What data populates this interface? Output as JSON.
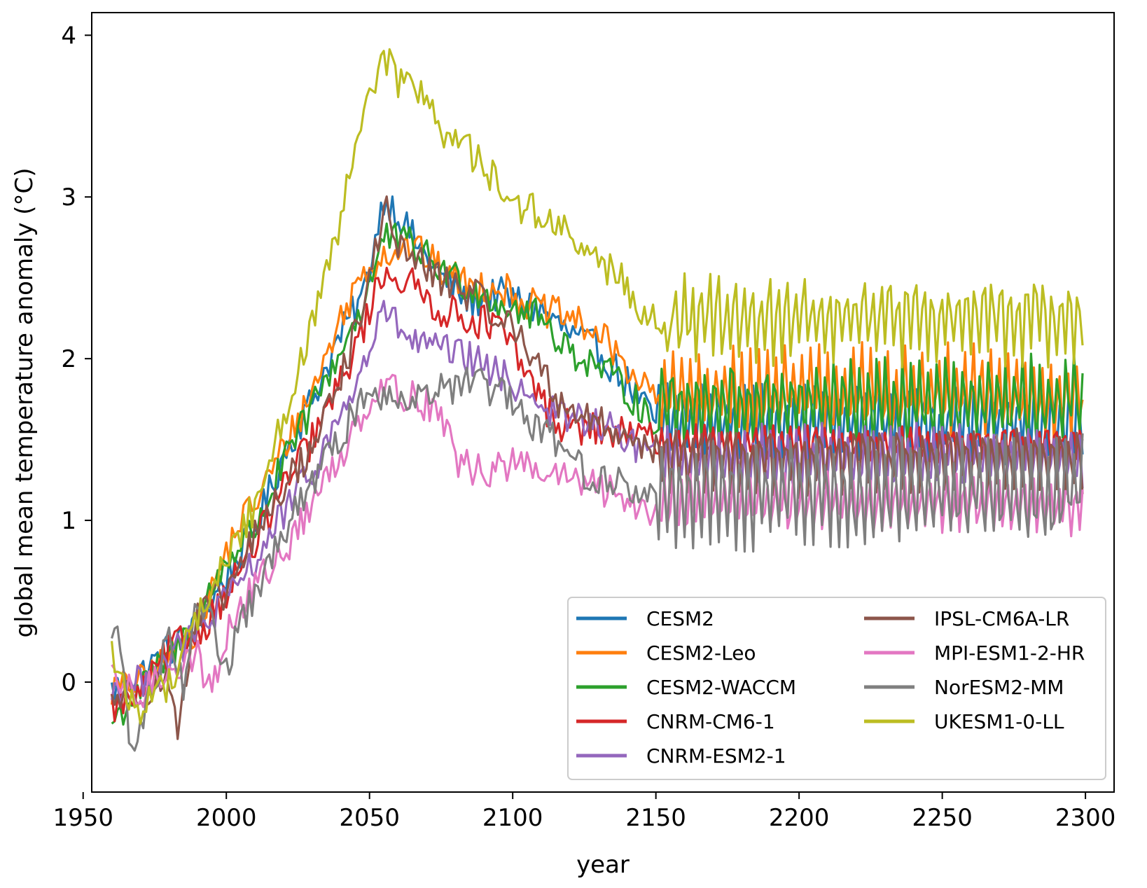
{
  "chart_data": {
    "type": "line",
    "title": "",
    "xlabel": "year",
    "ylabel": "global mean temperature anomaly (°C)",
    "xlim": [
      1953,
      2310
    ],
    "ylim": [
      -0.68,
      4.14
    ],
    "xticks": [
      1950,
      2000,
      2050,
      2100,
      2150,
      2200,
      2250,
      2300
    ],
    "yticks": [
      0,
      1,
      2,
      3,
      4
    ],
    "grid": false,
    "legend": {
      "placement": "lower-right",
      "columns": 2
    },
    "series": [
      {
        "name": "CESM2",
        "color": "#1f77b4",
        "anchors": [
          [
            1960,
            -0.05
          ],
          [
            1970,
            0.05
          ],
          [
            1980,
            0.2
          ],
          [
            1990,
            0.35
          ],
          [
            2000,
            0.65
          ],
          [
            2010,
            0.95
          ],
          [
            2020,
            1.4
          ],
          [
            2030,
            1.75
          ],
          [
            2040,
            2.15
          ],
          [
            2048,
            2.4
          ],
          [
            2055,
            3.0
          ],
          [
            2060,
            2.9
          ],
          [
            2065,
            2.75
          ],
          [
            2075,
            2.5
          ],
          [
            2085,
            2.35
          ],
          [
            2095,
            2.4
          ],
          [
            2110,
            2.3
          ],
          [
            2120,
            2.15
          ],
          [
            2130,
            2.05
          ],
          [
            2140,
            1.85
          ],
          [
            2150,
            1.6
          ]
        ],
        "osc": {
          "lo": 1.35,
          "hi": 1.9
        }
      },
      {
        "name": "CESM2-Leo",
        "color": "#ff7f0e",
        "anchors": [
          [
            1960,
            -0.05
          ],
          [
            1970,
            0.0
          ],
          [
            1980,
            0.15
          ],
          [
            1990,
            0.35
          ],
          [
            2000,
            0.8
          ],
          [
            2005,
            1.0
          ],
          [
            2010,
            1.1
          ],
          [
            2020,
            1.45
          ],
          [
            2030,
            1.8
          ],
          [
            2040,
            2.25
          ],
          [
            2048,
            2.55
          ],
          [
            2055,
            2.65
          ],
          [
            2065,
            2.7
          ],
          [
            2075,
            2.55
          ],
          [
            2085,
            2.45
          ],
          [
            2095,
            2.45
          ],
          [
            2110,
            2.3
          ],
          [
            2120,
            2.25
          ],
          [
            2130,
            2.15
          ],
          [
            2140,
            1.95
          ],
          [
            2150,
            1.75
          ]
        ],
        "osc": {
          "lo": 1.45,
          "hi": 2.1
        }
      },
      {
        "name": "CESM2-WACCM",
        "color": "#2ca02c",
        "anchors": [
          [
            1960,
            -0.25
          ],
          [
            1970,
            -0.05
          ],
          [
            1980,
            0.15
          ],
          [
            1990,
            0.4
          ],
          [
            2000,
            0.75
          ],
          [
            2010,
            0.95
          ],
          [
            2020,
            1.35
          ],
          [
            2030,
            1.7
          ],
          [
            2040,
            2.05
          ],
          [
            2048,
            2.35
          ],
          [
            2055,
            2.75
          ],
          [
            2065,
            2.7
          ],
          [
            2075,
            2.55
          ],
          [
            2085,
            2.45
          ],
          [
            2095,
            2.35
          ],
          [
            2110,
            2.25
          ],
          [
            2120,
            2.05
          ],
          [
            2130,
            1.95
          ],
          [
            2140,
            1.8
          ],
          [
            2150,
            1.6
          ]
        ],
        "osc": {
          "lo": 1.4,
          "hi": 2.05
        }
      },
      {
        "name": "CNRM-CM6-1",
        "color": "#d62728",
        "anchors": [
          [
            1960,
            -0.15
          ],
          [
            1970,
            -0.1
          ],
          [
            1980,
            0.2
          ],
          [
            1990,
            0.3
          ],
          [
            2000,
            0.55
          ],
          [
            2010,
            0.85
          ],
          [
            2020,
            1.2
          ],
          [
            2030,
            1.5
          ],
          [
            2040,
            1.85
          ],
          [
            2048,
            2.2
          ],
          [
            2055,
            2.55
          ],
          [
            2065,
            2.45
          ],
          [
            2075,
            2.3
          ],
          [
            2085,
            2.25
          ],
          [
            2095,
            2.2
          ],
          [
            2105,
            1.9
          ],
          [
            2115,
            1.6
          ],
          [
            2130,
            1.55
          ],
          [
            2150,
            1.5
          ]
        ],
        "osc": {
          "lo": 1.35,
          "hi": 1.6
        }
      },
      {
        "name": "CNRM-ESM2-1",
        "color": "#9467bd",
        "anchors": [
          [
            1960,
            -0.05
          ],
          [
            1970,
            0.0
          ],
          [
            1980,
            0.15
          ],
          [
            1990,
            0.3
          ],
          [
            2000,
            0.5
          ],
          [
            2010,
            0.75
          ],
          [
            2020,
            1.05
          ],
          [
            2030,
            1.3
          ],
          [
            2040,
            1.65
          ],
          [
            2048,
            1.95
          ],
          [
            2055,
            2.3
          ],
          [
            2065,
            2.1
          ],
          [
            2075,
            2.05
          ],
          [
            2085,
            2.0
          ],
          [
            2095,
            1.9
          ],
          [
            2105,
            1.8
          ],
          [
            2115,
            1.65
          ],
          [
            2130,
            1.6
          ],
          [
            2150,
            1.4
          ]
        ],
        "osc": {
          "lo": 1.15,
          "hi": 1.6
        }
      },
      {
        "name": "IPSL-CM6A-LR",
        "color": "#8c564b",
        "anchors": [
          [
            1960,
            -0.1
          ],
          [
            1970,
            -0.05
          ],
          [
            1980,
            0.0
          ],
          [
            1983,
            -0.25
          ],
          [
            1990,
            0.4
          ],
          [
            2000,
            0.55
          ],
          [
            2010,
            0.9
          ],
          [
            2020,
            1.2
          ],
          [
            2030,
            1.45
          ],
          [
            2040,
            1.9
          ],
          [
            2048,
            2.3
          ],
          [
            2055,
            2.95
          ],
          [
            2060,
            2.7
          ],
          [
            2070,
            2.55
          ],
          [
            2080,
            2.45
          ],
          [
            2090,
            2.35
          ],
          [
            2105,
            2.1
          ],
          [
            2115,
            1.75
          ],
          [
            2130,
            1.6
          ],
          [
            2150,
            1.45
          ]
        ],
        "osc": {
          "lo": 1.15,
          "hi": 1.6
        }
      },
      {
        "name": "MPI-ESM1-2-HR",
        "color": "#e377c2",
        "anchors": [
          [
            1960,
            0.0
          ],
          [
            1970,
            -0.1
          ],
          [
            1980,
            0.1
          ],
          [
            1990,
            0.15
          ],
          [
            1995,
            -0.05
          ],
          [
            2000,
            0.3
          ],
          [
            2010,
            0.6
          ],
          [
            2020,
            0.8
          ],
          [
            2030,
            1.1
          ],
          [
            2040,
            1.4
          ],
          [
            2048,
            1.7
          ],
          [
            2055,
            1.85
          ],
          [
            2065,
            1.75
          ],
          [
            2075,
            1.7
          ],
          [
            2080,
            1.35
          ],
          [
            2090,
            1.3
          ],
          [
            2100,
            1.35
          ],
          [
            2110,
            1.3
          ],
          [
            2120,
            1.25
          ],
          [
            2130,
            1.2
          ],
          [
            2150,
            1.05
          ]
        ],
        "osc": {
          "lo": 0.9,
          "hi": 1.3
        }
      },
      {
        "name": "NorESM2-MM",
        "color": "#7f7f7f",
        "anchors": [
          [
            1960,
            0.3
          ],
          [
            1962,
            0.35
          ],
          [
            1967,
            -0.45
          ],
          [
            1975,
            0.0
          ],
          [
            1980,
            0.3
          ],
          [
            1985,
            0.0
          ],
          [
            1990,
            0.55
          ],
          [
            2000,
            0.1
          ],
          [
            2010,
            0.55
          ],
          [
            2020,
            0.9
          ],
          [
            2030,
            1.25
          ],
          [
            2040,
            1.5
          ],
          [
            2048,
            1.8
          ],
          [
            2055,
            1.75
          ],
          [
            2065,
            1.8
          ],
          [
            2075,
            1.8
          ],
          [
            2085,
            1.85
          ],
          [
            2095,
            1.8
          ],
          [
            2105,
            1.6
          ],
          [
            2115,
            1.5
          ],
          [
            2125,
            1.3
          ],
          [
            2140,
            1.2
          ],
          [
            2150,
            1.15
          ]
        ],
        "osc": {
          "lo": 0.8,
          "hi": 1.55
        }
      },
      {
        "name": "UKESM1-0-LL",
        "color": "#bcbd22",
        "anchors": [
          [
            1960,
            0.2
          ],
          [
            1965,
            -0.1
          ],
          [
            1970,
            -0.15
          ],
          [
            1980,
            0.0
          ],
          [
            1990,
            0.4
          ],
          [
            2000,
            0.75
          ],
          [
            2010,
            1.1
          ],
          [
            2020,
            1.65
          ],
          [
            2030,
            2.2
          ],
          [
            2035,
            2.5
          ],
          [
            2040,
            2.85
          ],
          [
            2045,
            3.3
          ],
          [
            2050,
            3.6
          ],
          [
            2055,
            3.9
          ],
          [
            2060,
            3.7
          ],
          [
            2070,
            3.65
          ],
          [
            2075,
            3.4
          ],
          [
            2080,
            3.35
          ],
          [
            2090,
            3.2
          ],
          [
            2100,
            2.95
          ],
          [
            2110,
            2.9
          ],
          [
            2120,
            2.75
          ],
          [
            2130,
            2.6
          ],
          [
            2140,
            2.45
          ],
          [
            2150,
            2.2
          ],
          [
            2155,
            2.1
          ]
        ],
        "osc": {
          "lo": 1.95,
          "hi": 2.55
        }
      }
    ]
  }
}
